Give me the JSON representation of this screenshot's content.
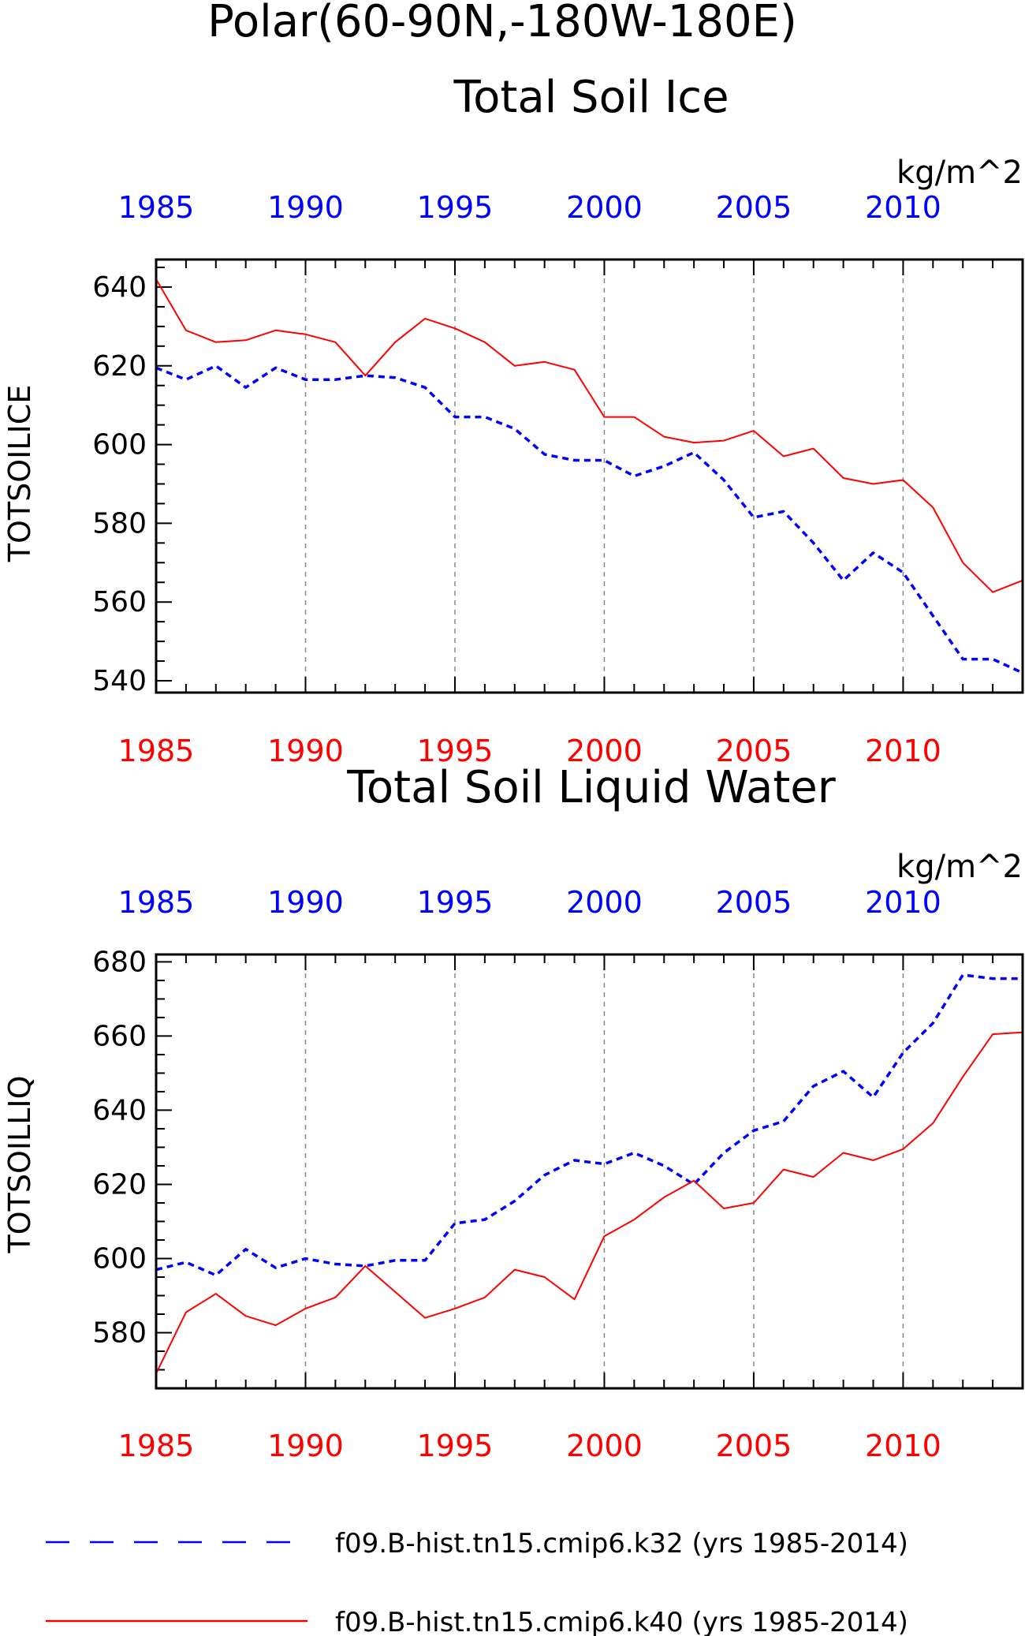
{
  "page": {
    "main_title": "Polar(60-90N,-180W-180E)"
  },
  "colors": {
    "series_k32": "#0000ff",
    "series_k40": "#ff0000",
    "frame": "#000000",
    "grid": "#888888"
  },
  "legend": {
    "entries": [
      {
        "label": "f09.B-hist.tn15.cmip6.k32 (yrs 1985-2014)",
        "style": "dashed",
        "color": "#0000ff"
      },
      {
        "label": "f09.B-hist.tn15.cmip6.k40 (yrs 1985-2014)",
        "style": "solid",
        "color": "#ff0000"
      }
    ]
  },
  "chart_data": [
    {
      "type": "line",
      "title": "Total Soil Ice",
      "units": "kg/m^2",
      "ylabel": "TOTSOILICE",
      "xlim": [
        1985,
        2014
      ],
      "ylim": [
        537,
        647
      ],
      "yticks": [
        540,
        560,
        580,
        600,
        620,
        640
      ],
      "ytick_labels": [
        "540",
        "560",
        "580",
        "600",
        "620",
        "640"
      ],
      "xticks": [
        1985,
        1990,
        1995,
        2000,
        2005,
        2010
      ],
      "xtick_labels": [
        "1985",
        "1990",
        "1995",
        "2000",
        "2005",
        "2010"
      ],
      "grid": "vertical-dashed",
      "x": [
        1985,
        1986,
        1987,
        1988,
        1989,
        1990,
        1991,
        1992,
        1993,
        1994,
        1995,
        1996,
        1997,
        1998,
        1999,
        2000,
        2001,
        2002,
        2003,
        2004,
        2005,
        2006,
        2007,
        2008,
        2009,
        2010,
        2011,
        2012,
        2013,
        2014
      ],
      "series": [
        {
          "key": "k32",
          "style": "dashed",
          "values": [
            619.5,
            616.5,
            620,
            614.5,
            619.5,
            616.5,
            616.5,
            617.5,
            617,
            614.5,
            607,
            607,
            604,
            597.5,
            596,
            596,
            592,
            594.5,
            598,
            591,
            581.5,
            583,
            575,
            565.5,
            572.5,
            567.5,
            556.5,
            545.5,
            545.5,
            542
          ]
        },
        {
          "key": "k40",
          "style": "solid",
          "values": [
            642,
            629,
            626,
            626.5,
            629,
            628,
            626,
            617.5,
            626,
            632,
            629.5,
            626,
            620,
            621,
            619,
            607,
            607,
            602,
            600.5,
            601,
            603.5,
            597,
            599,
            591.5,
            590,
            591,
            584,
            570,
            562.5,
            565.5
          ]
        }
      ]
    },
    {
      "type": "line",
      "title": "Total Soil Liquid Water",
      "units": "kg/m^2",
      "ylabel": "TOTSOILLIQ",
      "xlim": [
        1985,
        2014
      ],
      "ylim": [
        565,
        682
      ],
      "yticks": [
        580,
        600,
        620,
        640,
        660,
        680
      ],
      "ytick_labels": [
        "580",
        "600",
        "620",
        "640",
        "660",
        "680"
      ],
      "xticks": [
        1985,
        1990,
        1995,
        2000,
        2005,
        2010
      ],
      "xtick_labels": [
        "1985",
        "1990",
        "1995",
        "2000",
        "2005",
        "2010"
      ],
      "grid": "vertical-dashed",
      "x": [
        1985,
        1986,
        1987,
        1988,
        1989,
        1990,
        1991,
        1992,
        1993,
        1994,
        1995,
        1996,
        1997,
        1998,
        1999,
        2000,
        2001,
        2002,
        2003,
        2004,
        2005,
        2006,
        2007,
        2008,
        2009,
        2010,
        2011,
        2012,
        2013,
        2014
      ],
      "series": [
        {
          "key": "k32",
          "style": "dashed",
          "values": [
            597,
            599,
            595.5,
            602.5,
            597.5,
            600,
            598.5,
            598,
            599.5,
            599.5,
            609.5,
            610.5,
            615.5,
            622.5,
            626.5,
            625.5,
            628.5,
            625,
            620,
            628.5,
            634.5,
            637,
            646.5,
            650.5,
            643.5,
            655.5,
            663.5,
            676.5,
            675.5,
            675.5
          ]
        },
        {
          "key": "k40",
          "style": "solid",
          "values": [
            569,
            585.5,
            590.5,
            584.5,
            582,
            586.5,
            589.5,
            598,
            591,
            584,
            586.5,
            589.5,
            597,
            595,
            589,
            606,
            610.5,
            616.5,
            621,
            613.5,
            615,
            624,
            622,
            628.5,
            626.5,
            629.5,
            636.5,
            649,
            660.5,
            661
          ]
        }
      ]
    }
  ]
}
